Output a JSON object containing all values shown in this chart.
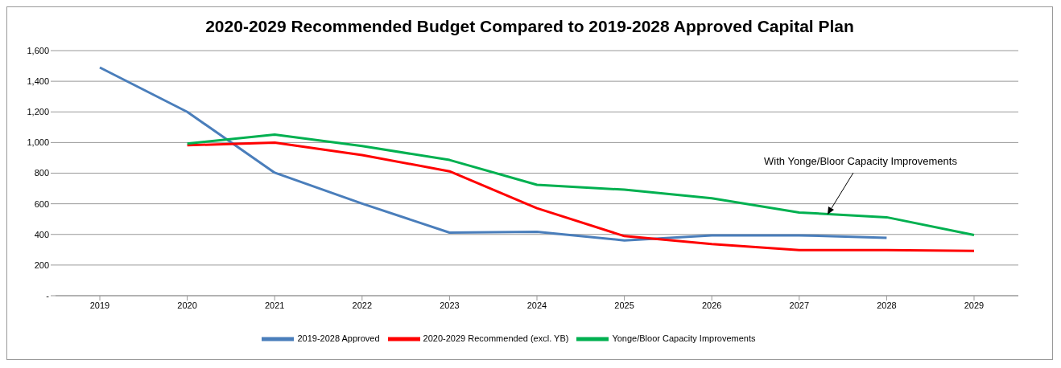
{
  "chart_data": {
    "type": "line",
    "title": "2020-2029 Recommended Budget Compared to 2019-2028 Approved Capital Plan",
    "categories": [
      "2019",
      "2020",
      "2021",
      "2022",
      "2023",
      "2024",
      "2025",
      "2026",
      "2027",
      "2028",
      "2029"
    ],
    "series": [
      {
        "name": "2019-2028 Approved",
        "color": "#4a7ebb",
        "values": [
          1490,
          1200,
          803,
          601,
          412,
          417,
          361,
          394,
          394,
          378,
          null
        ]
      },
      {
        "name": "2020-2029 Recommended (excl. YB)",
        "color": "#ff0000",
        "values": [
          null,
          982,
          999,
          918,
          812,
          571,
          389,
          337,
          298,
          298,
          292
        ]
      },
      {
        "name": "Yonge/Bloor Capacity Improvements",
        "color": "#00b050",
        "values": [
          null,
          993,
          1052,
          977,
          886,
          724,
          692,
          636,
          543,
          512,
          396
        ]
      }
    ],
    "ylim": [
      0,
      1600
    ],
    "yticks": [
      {
        "value": 0,
        "label": "-"
      },
      200,
      400,
      600,
      800,
      {
        "value": 1000,
        "label": "1,000"
      },
      {
        "value": 1200,
        "label": "1,200"
      },
      {
        "value": 1400,
        "label": "1,400"
      },
      {
        "value": 1600,
        "label": "1,600"
      }
    ],
    "grid": "y",
    "legend": "bottom",
    "marker": "none",
    "line_style": "solid",
    "annotations": [
      "With Yonge/Bloor Capacity Improvements"
    ]
  }
}
